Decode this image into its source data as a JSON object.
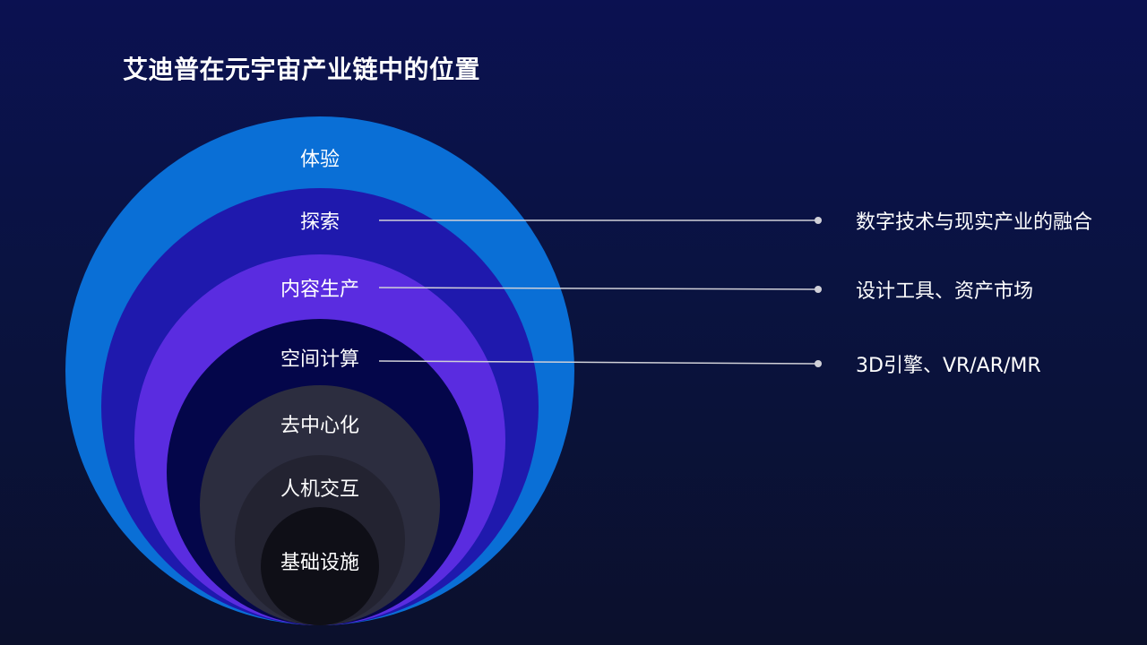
{
  "title": "艾迪普在元宇宙产业链中的位置",
  "layers": [
    {
      "label": "体验",
      "color": "#0a6fd6"
    },
    {
      "label": "探索",
      "color": "#1f19ad"
    },
    {
      "label": "内容生产",
      "color": "#5a2ce0"
    },
    {
      "label": "空间计算",
      "color": "#04064a"
    },
    {
      "label": "去中心化",
      "color": "#2c2d3f"
    },
    {
      "label": "人机交互",
      "color": "#232331"
    },
    {
      "label": "基础设施",
      "color": "#0f0f17"
    }
  ],
  "annotations": [
    {
      "text": "数字技术与现实产业的融合"
    },
    {
      "text": "设计工具、资产市场"
    },
    {
      "text": "3D引擎、VR/AR/MR"
    }
  ]
}
